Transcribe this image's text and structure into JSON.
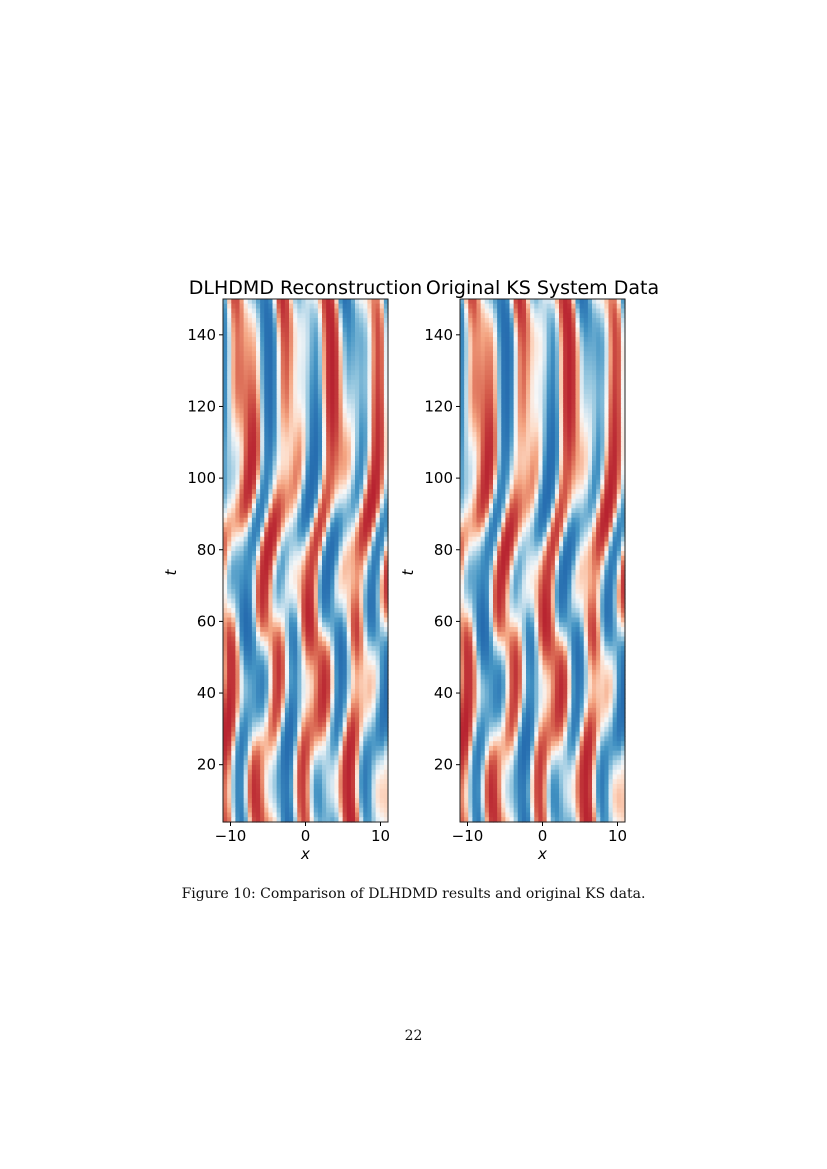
{
  "figure": {
    "caption": "Figure 10: Comparison of DLHDMD results and original KS data.",
    "colormap": [
      "#2166ac",
      "#4393c3",
      "#92c5de",
      "#d1e5f0",
      "#f7f7f7",
      "#fddbc7",
      "#f4a582",
      "#d6604d",
      "#b2182b"
    ]
  },
  "chart_data": [
    {
      "type": "heatmap",
      "title": "DLHDMD Reconstruction",
      "xlabel": "x",
      "ylabel": "t",
      "xlim": [
        -11,
        11
      ],
      "ylim": [
        4,
        150
      ],
      "xticks": [
        -10,
        0,
        10
      ],
      "xtick_labels": [
        "−10",
        "0",
        "10"
      ],
      "yticks": [
        20,
        40,
        60,
        80,
        100,
        120,
        140
      ],
      "ytick_labels": [
        "20",
        "40",
        "60",
        "80",
        "100",
        "120",
        "140"
      ]
    },
    {
      "type": "heatmap",
      "title": "Original KS System Data",
      "xlabel": "x",
      "ylabel": "t",
      "xlim": [
        -11,
        11
      ],
      "ylim": [
        4,
        150
      ],
      "xticks": [
        -10,
        0,
        10
      ],
      "xtick_labels": [
        "−10",
        "0",
        "10"
      ],
      "yticks": [
        20,
        40,
        60,
        80,
        100,
        120,
        140
      ],
      "ytick_labels": [
        "20",
        "40",
        "60",
        "80",
        "100",
        "120",
        "140"
      ]
    }
  ],
  "page": {
    "number": "22"
  }
}
